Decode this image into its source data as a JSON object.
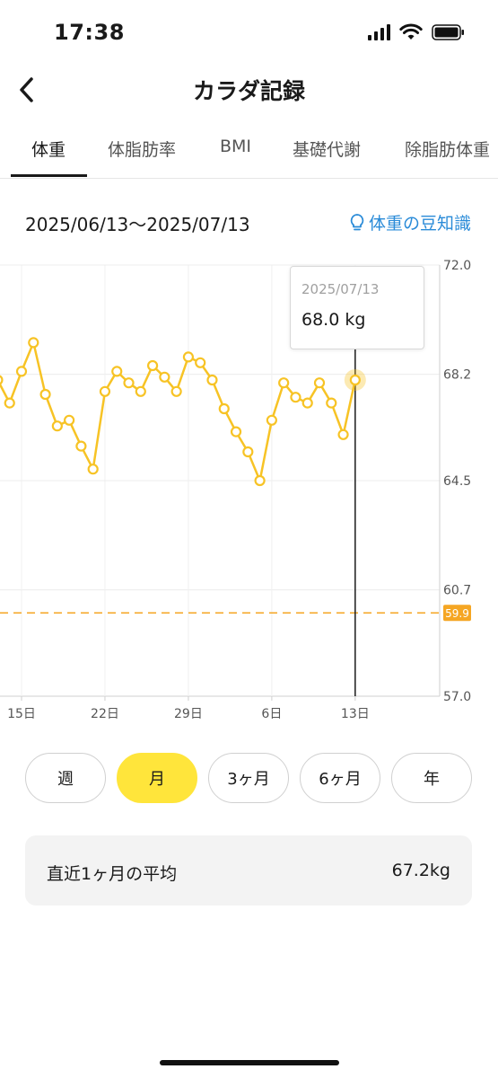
{
  "status_bar": {
    "time": "17:38"
  },
  "header": {
    "title": "カラダ記録"
  },
  "tabs": [
    {
      "label": "体重",
      "active": true
    },
    {
      "label": "体脂肪率",
      "active": false
    },
    {
      "label": "BMI",
      "active": false
    },
    {
      "label": "基礎代謝",
      "active": false
    },
    {
      "label": "除脂肪体重",
      "active": false
    }
  ],
  "date_range": "2025/06/13〜2025/07/13",
  "tips_link": "体重の豆知識",
  "tooltip": {
    "date": "2025/07/13",
    "value": "68.0 kg"
  },
  "chart_data": {
    "type": "line",
    "y_ticks": [
      "72.0",
      "68.2",
      "64.5",
      "60.7",
      "57.0"
    ],
    "ylim": [
      57.0,
      72.0
    ],
    "x_ticks": [
      {
        "label": "15日",
        "day": 15
      },
      {
        "label": "22日",
        "day": 22
      },
      {
        "label": "29日",
        "day": 29
      },
      {
        "label": "6日",
        "day": 36
      },
      {
        "label": "13日",
        "day": 43
      }
    ],
    "target_line": {
      "value": 59.9,
      "label": "59.9"
    },
    "selected_day": 43,
    "points": [
      {
        "day": 13,
        "value": 68.0
      },
      {
        "day": 14,
        "value": 67.2
      },
      {
        "day": 15,
        "value": 68.3
      },
      {
        "day": 16,
        "value": 69.3
      },
      {
        "day": 17,
        "value": 67.5
      },
      {
        "day": 18,
        "value": 66.4
      },
      {
        "day": 19,
        "value": 66.6
      },
      {
        "day": 20,
        "value": 65.7
      },
      {
        "day": 21,
        "value": 64.9
      },
      {
        "day": 22,
        "value": 67.6
      },
      {
        "day": 23,
        "value": 68.3
      },
      {
        "day": 24,
        "value": 67.9
      },
      {
        "day": 25,
        "value": 67.6
      },
      {
        "day": 26,
        "value": 68.5
      },
      {
        "day": 27,
        "value": 68.1
      },
      {
        "day": 28,
        "value": 67.6
      },
      {
        "day": 29,
        "value": 68.8
      },
      {
        "day": 30,
        "value": 68.6
      },
      {
        "day": 31,
        "value": 68.0
      },
      {
        "day": 32,
        "value": 67.0
      },
      {
        "day": 33,
        "value": 66.2
      },
      {
        "day": 34,
        "value": 65.5
      },
      {
        "day": 35,
        "value": 64.5
      },
      {
        "day": 36,
        "value": 66.6
      },
      {
        "day": 37,
        "value": 67.9
      },
      {
        "day": 38,
        "value": 67.4
      },
      {
        "day": 39,
        "value": 67.2
      },
      {
        "day": 40,
        "value": 67.9
      },
      {
        "day": 41,
        "value": 67.2
      },
      {
        "day": 42,
        "value": 66.1
      },
      {
        "day": 43,
        "value": 68.0
      }
    ],
    "line_color": "#f7c325",
    "target_color": "#f5a623",
    "grid": true
  },
  "periods": [
    {
      "label": "週",
      "active": false
    },
    {
      "label": "月",
      "active": true
    },
    {
      "label": "3ヶ月",
      "active": false
    },
    {
      "label": "6ヶ月",
      "active": false
    },
    {
      "label": "年",
      "active": false
    }
  ],
  "average": {
    "label": "直近1ヶ月の平均",
    "value": "67.2kg"
  },
  "colors": {
    "accent_yellow": "#ffe53b",
    "link_blue": "#2a8bd8"
  }
}
